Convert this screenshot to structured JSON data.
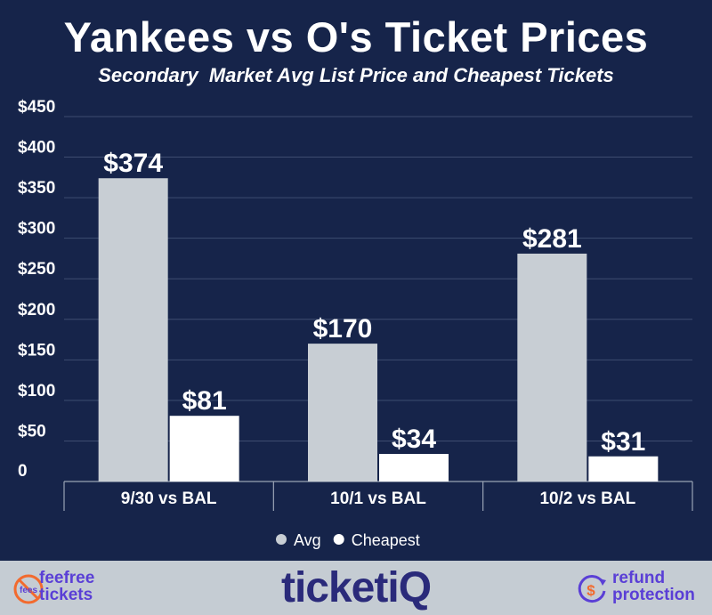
{
  "chart_data": {
    "type": "bar",
    "title": "Yankees vs O's Ticket Prices",
    "subtitle": "Secondary  Market Avg List Price and Cheapest Tickets",
    "categories": [
      "9/30 vs BAL",
      "10/1 vs BAL",
      "10/2 vs BAL"
    ],
    "series": [
      {
        "name": "Avg",
        "values": [
          374,
          170,
          281
        ],
        "labels": [
          "$374",
          "$170",
          "$281"
        ],
        "color": "#c8ced4"
      },
      {
        "name": "Cheapest",
        "values": [
          81,
          34,
          31
        ],
        "labels": [
          "$81",
          "$34",
          "$31"
        ],
        "color": "#ffffff"
      }
    ],
    "ylim": [
      0,
      450
    ],
    "yticks": [
      0,
      50,
      100,
      150,
      200,
      250,
      300,
      350,
      400,
      450
    ],
    "ytick_labels": [
      "0",
      "$50",
      "$100",
      "$150",
      "$200",
      "$250",
      "$300",
      "$350",
      "$400",
      "$450"
    ],
    "grid": true,
    "legend_position": "bottom-center"
  },
  "footer": {
    "left_logo_badge": "fees",
    "left_logo_text": "feefree tickets",
    "center_logo_text": "ticketiQ",
    "right_logo_text": "refund protection",
    "right_logo_symbol": "$"
  },
  "colors": {
    "background": "#16244a",
    "footer": "#c5ccd3",
    "brand_purple": "#5a3fd6",
    "brand_orange": "#f26a2e",
    "brand_navy": "#2a2a7a"
  },
  "icons": [
    "no-fees-icon",
    "ticketiq-magnifier-icon",
    "refund-dollar-icon"
  ]
}
